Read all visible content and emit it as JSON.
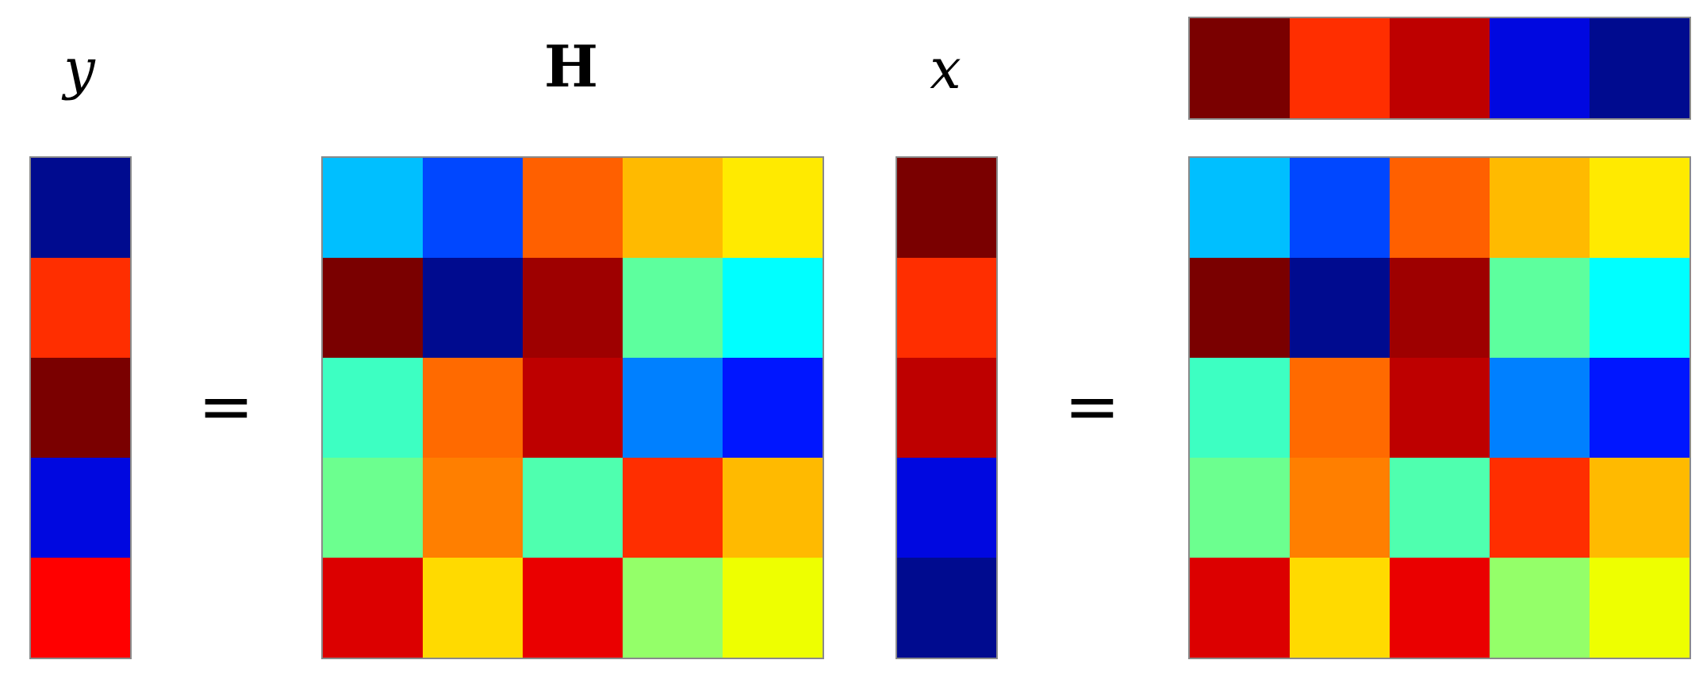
{
  "labels": {
    "y": "y",
    "H": "H",
    "x": "x",
    "equals": "="
  },
  "y_vector": [
    "#000b8f",
    "#ff2e00",
    "#7a0000",
    "#0008e0",
    "#ff0000"
  ],
  "x_vector": [
    "#7a0000",
    "#ff2e00",
    "#be0000",
    "#0008e0",
    "#000b8f"
  ],
  "H_matrix": [
    [
      "#00bfff",
      "#0047ff",
      "#ff6000",
      "#ffba00",
      "#ffea00"
    ],
    [
      "#7a0000",
      "#000b8f",
      "#9e0000",
      "#5dff9e",
      "#00ffff"
    ],
    [
      "#3dffc2",
      "#ff6a00",
      "#be0000",
      "#0080ff",
      "#0016ff"
    ],
    [
      "#6cff8f",
      "#ff7f00",
      "#4fffaf",
      "#ff2e00",
      "#ffba00"
    ],
    [
      "#dc0000",
      "#ffda00",
      "#ea0000",
      "#94ff69",
      "#eeff00"
    ]
  ]
}
